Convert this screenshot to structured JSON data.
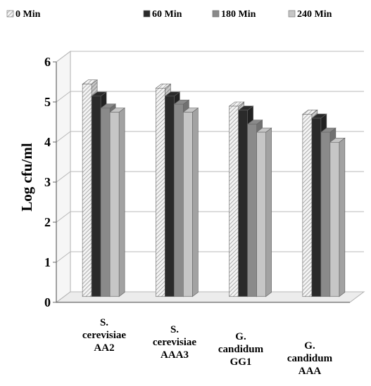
{
  "chart_data": {
    "type": "bar",
    "title": "",
    "xlabel": "",
    "ylabel": "Log cfu/ml",
    "ylim": [
      0,
      6
    ],
    "yticks": [
      0,
      1,
      2,
      3,
      4,
      5,
      6
    ],
    "grid": true,
    "legend_position": "top",
    "three_d": true,
    "categories": [
      [
        "S.",
        "cerevisiae",
        "AA2"
      ],
      [
        "S.",
        "cerevisiae",
        "AAA3"
      ],
      [
        "G.",
        "candidum",
        "GG1"
      ],
      [
        "G.",
        "candidum",
        "AAA"
      ]
    ],
    "series": [
      {
        "name": "0 Min",
        "values": [
          5.3,
          5.2,
          4.75,
          4.55
        ],
        "color": "#e2e2e2",
        "pattern": "hatched"
      },
      {
        "name": "60 Min",
        "values": [
          5.0,
          5.0,
          4.65,
          4.45
        ],
        "color": "#2a2a2a"
      },
      {
        "name": "180 Min",
        "values": [
          4.7,
          4.8,
          4.3,
          4.1
        ],
        "color": "#8a8a8a"
      },
      {
        "name": "240 Min",
        "values": [
          4.6,
          4.6,
          4.1,
          3.85
        ],
        "color": "#c6c6c6"
      }
    ]
  }
}
